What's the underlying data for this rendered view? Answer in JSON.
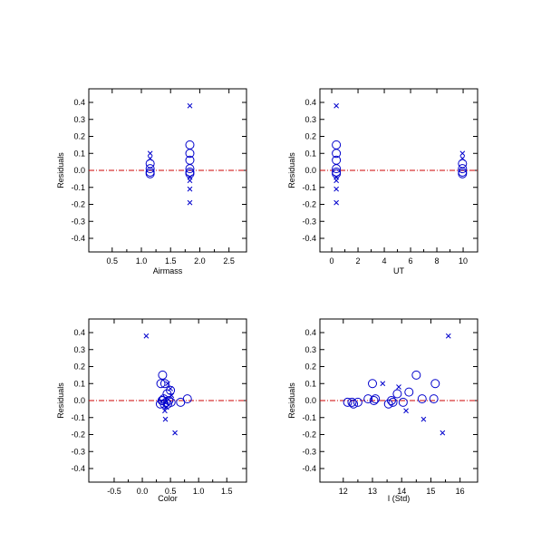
{
  "colors": {
    "marker": "#0000cc",
    "zero_line": "#cc0000",
    "axis": "#000000"
  },
  "chart_data": [
    {
      "type": "scatter",
      "xlabel": "Airmass",
      "ylabel": "Residuals",
      "xlim": [
        0.1,
        2.8
      ],
      "ylim": [
        -0.48,
        0.48
      ],
      "xticks": [
        0.5,
        1.0,
        1.5,
        2.0,
        2.5
      ],
      "xtick_labels": [
        "0.5",
        "1.0",
        "1.5",
        "2.0",
        "2.5"
      ],
      "yticks": [
        -0.4,
        -0.3,
        -0.2,
        -0.1,
        0.0,
        0.1,
        0.2,
        0.3,
        0.4
      ],
      "ytick_labels": [
        "-0.4",
        "-0.3",
        "-0.2",
        "-0.1",
        "0.0",
        "0.1",
        "0.2",
        "0.3",
        "0.4"
      ],
      "zero_line": 0,
      "series": [
        {
          "marker": "circle",
          "points": [
            [
              1.15,
              0.04
            ],
            [
              1.15,
              0.01
            ],
            [
              1.15,
              -0.01
            ],
            [
              1.15,
              -0.02
            ],
            [
              1.83,
              0.15
            ],
            [
              1.83,
              0.1
            ],
            [
              1.83,
              0.06
            ],
            [
              1.83,
              0.01
            ],
            [
              1.83,
              -0.01
            ],
            [
              1.83,
              -0.02
            ]
          ]
        },
        {
          "marker": "cross",
          "points": [
            [
              1.15,
              0.1
            ],
            [
              1.15,
              0.07
            ],
            [
              1.83,
              0.38
            ],
            [
              1.83,
              -0.04
            ],
            [
              1.83,
              -0.06
            ],
            [
              1.83,
              -0.11
            ],
            [
              1.83,
              -0.19
            ]
          ]
        }
      ]
    },
    {
      "type": "scatter",
      "xlabel": "UT",
      "ylabel": "Residuals",
      "xlim": [
        -0.9,
        11.1
      ],
      "ylim": [
        -0.48,
        0.48
      ],
      "xticks": [
        0,
        2,
        4,
        6,
        8,
        10
      ],
      "xtick_labels": [
        "0",
        "2",
        "4",
        "6",
        "8",
        "10"
      ],
      "yticks": [
        -0.4,
        -0.3,
        -0.2,
        -0.1,
        0.0,
        0.1,
        0.2,
        0.3,
        0.4
      ],
      "ytick_labels": [
        "-0.4",
        "-0.3",
        "-0.2",
        "-0.1",
        "0.0",
        "0.1",
        "0.2",
        "0.3",
        "0.4"
      ],
      "zero_line": 0,
      "series": [
        {
          "marker": "circle",
          "points": [
            [
              0.35,
              0.15
            ],
            [
              0.35,
              0.1
            ],
            [
              0.35,
              0.06
            ],
            [
              0.35,
              0.01
            ],
            [
              0.35,
              -0.01
            ],
            [
              0.35,
              -0.02
            ],
            [
              9.95,
              0.04
            ],
            [
              9.95,
              0.01
            ],
            [
              9.95,
              -0.01
            ],
            [
              9.95,
              -0.02
            ]
          ]
        },
        {
          "marker": "cross",
          "points": [
            [
              0.35,
              0.38
            ],
            [
              0.35,
              -0.04
            ],
            [
              0.35,
              -0.06
            ],
            [
              0.35,
              -0.11
            ],
            [
              0.35,
              -0.19
            ],
            [
              9.95,
              0.1
            ],
            [
              9.95,
              0.07
            ]
          ]
        }
      ]
    },
    {
      "type": "scatter",
      "xlabel": "Color",
      "ylabel": "Residuals",
      "xlim": [
        -0.95,
        1.85
      ],
      "ylim": [
        -0.48,
        0.48
      ],
      "xticks": [
        -0.5,
        0.0,
        0.5,
        1.0,
        1.5
      ],
      "xtick_labels": [
        "-0.5",
        "0.0",
        "0.5",
        "1.0",
        "1.5"
      ],
      "yticks": [
        -0.4,
        -0.3,
        -0.2,
        -0.1,
        0.0,
        0.1,
        0.2,
        0.3,
        0.4
      ],
      "ytick_labels": [
        "-0.4",
        "-0.3",
        "-0.2",
        "-0.1",
        "0.0",
        "0.1",
        "0.2",
        "0.3",
        "0.4"
      ],
      "zero_line": 0,
      "series": [
        {
          "marker": "circle",
          "points": [
            [
              0.36,
              0.15
            ],
            [
              0.33,
              0.1
            ],
            [
              0.4,
              0.1
            ],
            [
              0.5,
              0.06
            ],
            [
              0.44,
              0.04
            ],
            [
              0.8,
              0.01
            ],
            [
              0.35,
              0.0
            ],
            [
              0.38,
              0.01
            ],
            [
              0.42,
              -0.01
            ],
            [
              0.47,
              0.0
            ],
            [
              0.51,
              -0.01
            ],
            [
              0.32,
              -0.02
            ],
            [
              0.39,
              -0.02
            ],
            [
              0.68,
              -0.01
            ],
            [
              0.45,
              -0.02
            ],
            [
              0.36,
              0.0
            ]
          ]
        },
        {
          "marker": "cross",
          "points": [
            [
              0.07,
              0.38
            ],
            [
              0.45,
              0.1
            ],
            [
              0.5,
              0.07
            ],
            [
              0.52,
              0.03
            ],
            [
              0.43,
              -0.04
            ],
            [
              0.4,
              -0.06
            ],
            [
              0.41,
              -0.11
            ],
            [
              0.58,
              -0.19
            ]
          ]
        }
      ]
    },
    {
      "type": "scatter",
      "xlabel": "I (Std)",
      "ylabel": "Residuals",
      "xlim": [
        11.2,
        16.6
      ],
      "ylim": [
        -0.48,
        0.48
      ],
      "xticks": [
        12,
        13,
        14,
        15,
        16
      ],
      "xtick_labels": [
        "12",
        "13",
        "14",
        "15",
        "16"
      ],
      "yticks": [
        -0.4,
        -0.3,
        -0.2,
        -0.1,
        0.0,
        0.1,
        0.2,
        0.3,
        0.4
      ],
      "ytick_labels": [
        "-0.4",
        "-0.3",
        "-0.2",
        "-0.1",
        "0.0",
        "0.1",
        "0.2",
        "0.3",
        "0.4"
      ],
      "zero_line": 0,
      "series": [
        {
          "marker": "circle",
          "points": [
            [
              12.15,
              -0.01
            ],
            [
              12.35,
              -0.02
            ],
            [
              12.5,
              -0.01
            ],
            [
              12.85,
              0.01
            ],
            [
              13.0,
              0.1
            ],
            [
              13.05,
              0.0
            ],
            [
              13.1,
              0.01
            ],
            [
              13.55,
              -0.02
            ],
            [
              13.7,
              -0.01
            ],
            [
              13.85,
              0.04
            ],
            [
              14.05,
              -0.01
            ],
            [
              14.25,
              0.05
            ],
            [
              14.5,
              0.15
            ],
            [
              14.7,
              0.01
            ],
            [
              15.15,
              0.1
            ],
            [
              15.1,
              0.01
            ],
            [
              12.3,
              -0.01
            ],
            [
              13.65,
              0.0
            ]
          ]
        },
        {
          "marker": "cross",
          "points": [
            [
              13.35,
              0.1
            ],
            [
              13.9,
              0.08
            ],
            [
              14.15,
              -0.06
            ],
            [
              14.75,
              -0.11
            ],
            [
              15.4,
              -0.19
            ],
            [
              15.6,
              0.38
            ]
          ]
        }
      ]
    }
  ]
}
